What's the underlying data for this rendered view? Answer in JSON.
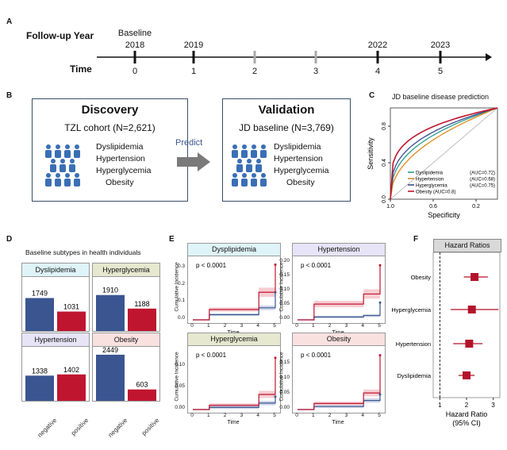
{
  "panel_a": {
    "label": "A",
    "row1_title": "Follow-up Year",
    "row2_title": "Time",
    "years": [
      {
        "top": "Baseline",
        "bottom": "2018",
        "time": "0"
      },
      {
        "top": "",
        "bottom": "2019",
        "time": "1"
      },
      {
        "top": "",
        "bottom": "",
        "time": "2"
      },
      {
        "top": "",
        "bottom": "",
        "time": "3"
      },
      {
        "top": "",
        "bottom": "2022",
        "time": "4"
      },
      {
        "top": "",
        "bottom": "2023",
        "time": "5"
      }
    ]
  },
  "panel_b": {
    "label": "B",
    "discovery": {
      "title": "Discovery",
      "cohort": "TZL cohort (N=2,621)",
      "items": [
        "Dyslipidemia",
        "Hypertension",
        "Hyperglycemia",
        "Obesity"
      ]
    },
    "arrow_label": "Predict",
    "validation": {
      "title": "Validation",
      "cohort": "JD baseline (N=3,769)",
      "items": [
        "Dyslipidemia",
        "Hypertension",
        "Hyperglycemia",
        "Obesity"
      ]
    }
  },
  "panel_c": {
    "label": "C",
    "chart_data": {
      "type": "line",
      "title": "JD baseline disease prediction",
      "xlabel": "Specificity",
      "ylabel": "Sensitivity",
      "xticks": [
        "1.0",
        "0.6",
        "0.2"
      ],
      "yticks": [
        "0.0",
        "0.4",
        "0.8"
      ],
      "series": [
        {
          "name": "Dyslipidemia",
          "auc": "(AUC=0.72)",
          "color": "#2a9d8f"
        },
        {
          "name": "Hypertension",
          "auc": "(AUC=0.68)",
          "color": "#e08a1e"
        },
        {
          "name": "Hyperglycemia",
          "auc": "(AUC=0.75)",
          "color": "#3b4a8c"
        },
        {
          "name": "Obesity (AUC=0.8)",
          "auc": "",
          "color": "#c0152f"
        }
      ]
    }
  },
  "panel_d": {
    "label": "D",
    "title": "Baseline subtypes in health individuals",
    "xcats": [
      "negative",
      "positive"
    ],
    "colors": {
      "negative": "#3a5590",
      "positive": "#c0152f"
    },
    "chart_data": {
      "type": "bar",
      "categories": [
        "negative",
        "positive"
      ],
      "series": [
        {
          "name": "Dyslipidemia",
          "values": [
            1749,
            1031
          ],
          "strip": "#dff4f8"
        },
        {
          "name": "Hyperglycemia",
          "values": [
            1910,
            1188
          ],
          "strip": "#e6e8cf"
        },
        {
          "name": "Hypertension",
          "values": [
            1338,
            1402
          ],
          "strip": "#e6e4f6"
        },
        {
          "name": "Obesity",
          "values": [
            2449,
            603
          ],
          "strip": "#f9e1e0"
        }
      ]
    }
  },
  "panel_e": {
    "label": "E",
    "chart_data": {
      "type": "line",
      "xlabel": "Time",
      "ylabel": "Cumulative Incidence",
      "x": [
        0,
        1,
        2,
        3,
        4,
        5
      ],
      "panels": [
        {
          "name": "Dysplipidemia",
          "pval": "p < 0.0001",
          "strip": "#dff4f8",
          "ymax": 0.35,
          "yticks": [
            "0.0",
            "0.1",
            "0.2",
            "0.3"
          ],
          "negative": [
            0,
            0.03,
            0.03,
            0.03,
            0.07,
            0.16
          ],
          "positive": [
            0,
            0.06,
            0.06,
            0.06,
            0.16,
            0.32
          ]
        },
        {
          "name": "Hypertension",
          "pval": "p < 0.0001",
          "strip": "#e6e4f6",
          "ymax": 0.21,
          "yticks": [
            "0.00",
            "0.05",
            "0.10",
            "0.15",
            "0.20"
          ],
          "negative": [
            0,
            0.01,
            0.01,
            0.01,
            0.015,
            0.06
          ],
          "positive": [
            0,
            0.055,
            0.055,
            0.055,
            0.09,
            0.19
          ]
        },
        {
          "name": "Hyperglycemia",
          "pval": "p < 0.0001",
          "strip": "#e6e8cf",
          "ymax": 0.14,
          "yticks": [
            "0.00",
            "0.05",
            "0.10"
          ],
          "negative": [
            0,
            0.005,
            0.005,
            0.005,
            0.015,
            0.03
          ],
          "positive": [
            0,
            0.01,
            0.01,
            0.01,
            0.035,
            0.12
          ]
        },
        {
          "name": "Obesity",
          "pval": "p < 0.0001",
          "strip": "#f9e1e0",
          "ymax": 0.2,
          "yticks": [
            "0.00",
            "0.05",
            "0.10",
            "0.15"
          ],
          "negative": [
            0,
            0.01,
            0.01,
            0.01,
            0.03,
            0.05
          ],
          "positive": [
            0,
            0.02,
            0.02,
            0.02,
            0.055,
            0.18
          ]
        }
      ]
    }
  },
  "panel_f": {
    "label": "F",
    "chart_data": {
      "type": "scatter",
      "title": "Hazard Ratios",
      "xlabel": "Hazard Ratio",
      "xlabel2": "(95% CI)",
      "xticks": [
        "1",
        "2",
        "3"
      ],
      "rows": [
        {
          "name": "Obesity",
          "hr": 2.3,
          "lo": 1.9,
          "hi": 2.8
        },
        {
          "name": "Hyperglycemia",
          "hr": 2.2,
          "lo": 1.4,
          "hi": 3.2
        },
        {
          "name": "Hypertension",
          "hr": 2.1,
          "lo": 1.5,
          "hi": 2.6
        },
        {
          "name": "Dyslipidemia",
          "hr": 2.0,
          "lo": 1.7,
          "hi": 2.3
        }
      ]
    }
  }
}
